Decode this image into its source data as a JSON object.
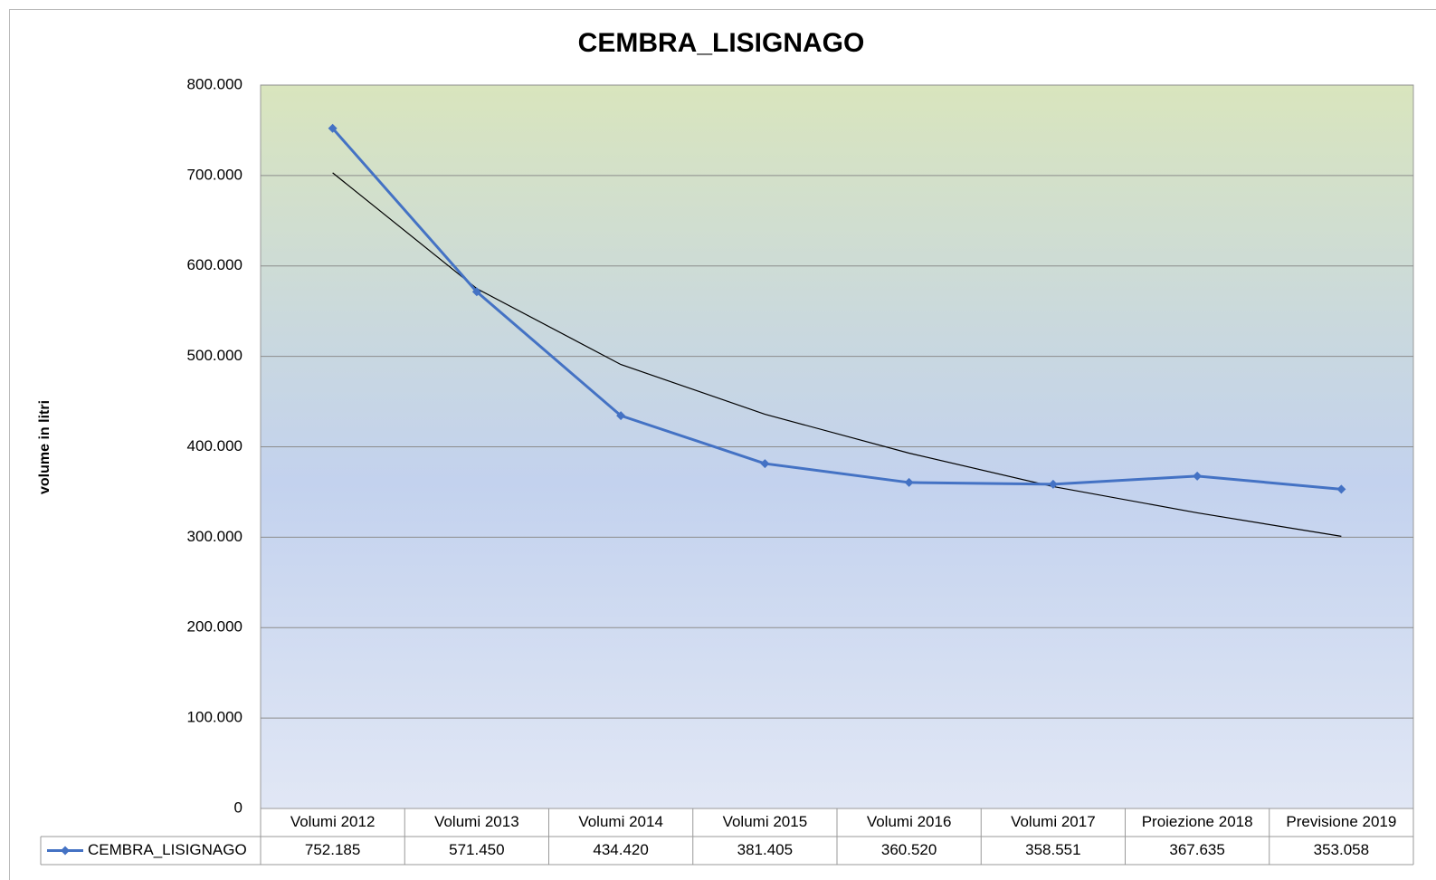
{
  "chart_data": {
    "type": "line",
    "title": "CEMBRA_LISIGNAGO",
    "y_label": "volume in litri",
    "categories": [
      "Volumi 2012",
      "Volumi 2013",
      "Volumi 2014",
      "Volumi 2015",
      "Volumi 2016",
      "Volumi 2017",
      "Proiezione 2018",
      "Previsione 2019"
    ],
    "series": [
      {
        "name": "CEMBRA_LISIGNAGO",
        "color": "#4472c4",
        "values": [
          752185,
          571450,
          434420,
          381405,
          360520,
          358551,
          367635,
          353058
        ],
        "value_labels": [
          "752.185",
          "571.450",
          "434.420",
          "381.405",
          "360.520",
          "358.551",
          "367.635",
          "353.058"
        ]
      }
    ],
    "trendline": {
      "color": "#000000",
      "values": [
        703000,
        575000,
        491000,
        436000,
        393000,
        356000,
        327000,
        301000
      ]
    },
    "ylim": [
      0,
      800000
    ],
    "yticks": [
      0,
      {
        "value": 100000,
        "label": "100.000"
      },
      {
        "value": 200000,
        "label": "200.000"
      },
      {
        "value": 300000,
        "label": "300.000"
      },
      {
        "value": 400000,
        "label": "400.000"
      },
      {
        "value": 500000,
        "label": "500.000"
      },
      {
        "value": 600000,
        "label": "600.000"
      },
      {
        "value": 700000,
        "label": "700.000"
      },
      {
        "value": 800000,
        "label": "800.000"
      }
    ],
    "grid": true
  }
}
